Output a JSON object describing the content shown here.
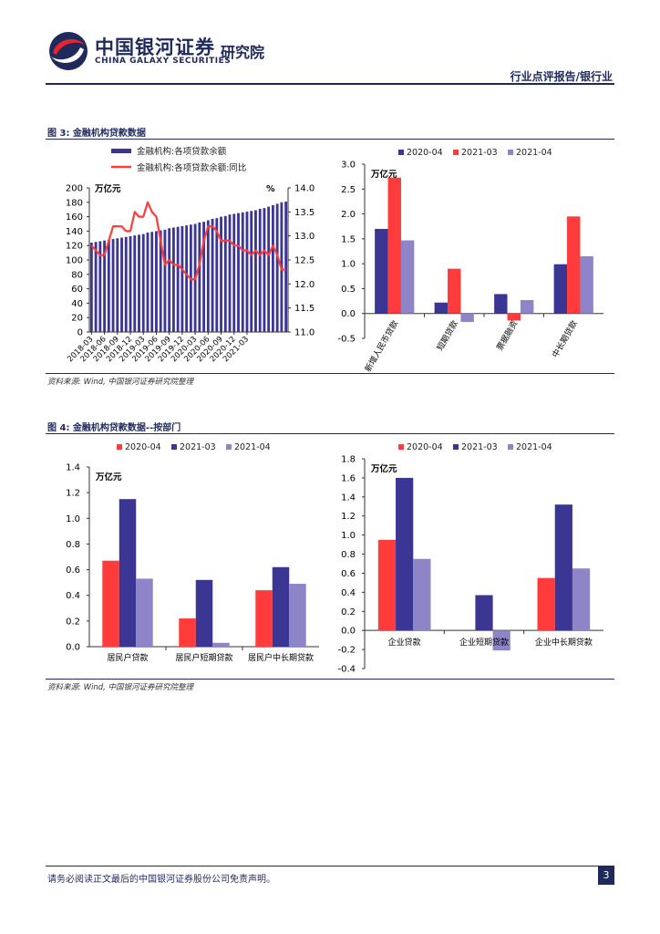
{
  "header": {
    "brand_cn": "中国银河证券",
    "brand_en": "CHINA GALAXY SECURITIES",
    "brand_inst": "研究院",
    "report_type": "行业点评报告/银行业"
  },
  "footer": {
    "disclaimer": "请务必阅读正文最后的中国银河证券股份公司免责声明。",
    "page": "3"
  },
  "figure3": {
    "title": "图 3: 金融机构贷款数据",
    "source": "资料来源: Wind, 中国银河证券研究院整理"
  },
  "figure4": {
    "title": "图 4: 金融机构贷款数据--按部门",
    "source": "资料来源: Wind, 中国银河证券研究院整理"
  },
  "colors": {
    "navy": "#3b3594",
    "red": "#ff3b3b",
    "lavender": "#8e85c9",
    "brand": "#1f2a5c"
  },
  "chart_data": [
    {
      "id": "loan_balance",
      "type": "bar+line",
      "legend": [
        "金融机构:各项贷款余额",
        "金融机构:各项贷款余额:同比"
      ],
      "left_unit": "万亿元",
      "right_unit": "%",
      "ylim_left": [
        0,
        200
      ],
      "yticks_left": [
        "0",
        "20",
        "40",
        "60",
        "80",
        "100",
        "120",
        "140",
        "160",
        "180",
        "200"
      ],
      "ylim_right": [
        11.0,
        14.0
      ],
      "yticks_right": [
        "11.0",
        "11.5",
        "12.0",
        "12.5",
        "13.0",
        "13.5",
        "14.0"
      ],
      "xtick_labels": [
        "2018-03",
        "2018-06",
        "2018-09",
        "2018-12",
        "2019-03",
        "2019-06",
        "2019-09",
        "2019-12",
        "2020-03",
        "2020-06",
        "2020-09",
        "2020-12",
        "2021-03"
      ],
      "bars": [
        124,
        125,
        126,
        127,
        128,
        129,
        130,
        131,
        132,
        133,
        134,
        135,
        136,
        138,
        139,
        140,
        141,
        142,
        144,
        145,
        146,
        147,
        148,
        149,
        150,
        152,
        153,
        155,
        157,
        158,
        160,
        161,
        163,
        164,
        165,
        166,
        167,
        168,
        169,
        171,
        172,
        174,
        176,
        178,
        180,
        181
      ],
      "yoy": [
        12.8,
        12.7,
        12.6,
        12.6,
        12.9,
        13.2,
        13.2,
        13.2,
        13.1,
        13.1,
        13.5,
        13.4,
        13.4,
        13.7,
        13.5,
        13.4,
        12.9,
        12.4,
        12.5,
        12.4,
        12.4,
        12.3,
        12.2,
        12.1,
        12.1,
        12.4,
        12.9,
        13.2,
        13.2,
        13.1,
        12.9,
        12.9,
        12.9,
        12.8,
        12.8,
        12.7,
        12.7,
        12.6,
        12.7,
        12.6,
        12.7,
        12.6,
        12.8,
        12.6,
        12.3,
        12.3
      ]
    },
    {
      "id": "loan_types",
      "type": "bar",
      "unit": "万亿元",
      "ylim": [
        -0.5,
        3.0
      ],
      "yticks": [
        "-0.5",
        "0.0",
        "0.5",
        "1.0",
        "1.5",
        "2.0",
        "2.5",
        "3.0"
      ],
      "categories": [
        "新增人民币贷款",
        "短期贷款",
        "票据融资",
        "中长期贷款"
      ],
      "series": [
        {
          "name": "2020-04",
          "color": "#3b3594",
          "values": [
            1.7,
            0.22,
            0.39,
            0.99
          ]
        },
        {
          "name": "2021-03",
          "color": "#ff3b3b",
          "values": [
            2.73,
            0.9,
            -0.14,
            1.95
          ]
        },
        {
          "name": "2021-04",
          "color": "#8e85c9",
          "values": [
            1.47,
            -0.17,
            0.27,
            1.15
          ]
        }
      ]
    },
    {
      "id": "household",
      "type": "bar",
      "unit": "万亿元",
      "ylim": [
        0,
        1.4
      ],
      "yticks": [
        "0.0",
        "0.2",
        "0.4",
        "0.6",
        "0.8",
        "1.0",
        "1.2",
        "1.4"
      ],
      "categories": [
        "居民户贷款",
        "居民户短期贷款",
        "居民户中长期贷款"
      ],
      "series": [
        {
          "name": "2020-04",
          "color": "#ff3b3b",
          "values": [
            0.67,
            0.22,
            0.44
          ]
        },
        {
          "name": "2021-03",
          "color": "#3b3594",
          "values": [
            1.15,
            0.52,
            0.62
          ]
        },
        {
          "name": "2021-04",
          "color": "#8e85c9",
          "values": [
            0.53,
            0.03,
            0.49
          ]
        }
      ]
    },
    {
      "id": "corporate",
      "type": "bar",
      "unit": "万亿元",
      "ylim": [
        -0.4,
        1.8
      ],
      "yticks": [
        "-0.4",
        "-0.2",
        "0.0",
        "0.2",
        "0.4",
        "0.6",
        "0.8",
        "1.0",
        "1.2",
        "1.4",
        "1.6",
        "1.8"
      ],
      "categories": [
        "企业贷款",
        "企业短期贷款",
        "企业中长期贷款"
      ],
      "series": [
        {
          "name": "2020-04",
          "color": "#ff3b3b",
          "values": [
            0.95,
            0.0,
            0.55
          ]
        },
        {
          "name": "2021-03",
          "color": "#3b3594",
          "values": [
            1.6,
            0.37,
            1.32
          ]
        },
        {
          "name": "2021-04",
          "color": "#8e85c9",
          "values": [
            0.75,
            -0.21,
            0.65
          ]
        }
      ]
    }
  ]
}
